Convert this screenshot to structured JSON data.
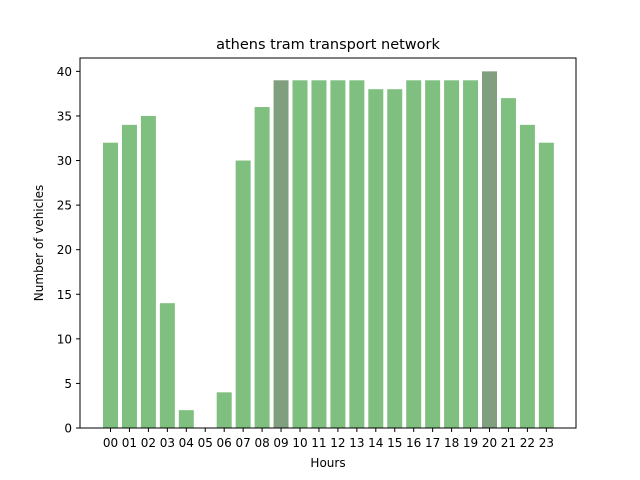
{
  "chart_data": {
    "type": "bar",
    "title": "athens tram transport network",
    "xlabel": "Hours",
    "ylabel": "Number of vehicles",
    "categories": [
      "00",
      "01",
      "02",
      "03",
      "04",
      "05",
      "06",
      "07",
      "08",
      "09",
      "10",
      "11",
      "12",
      "13",
      "14",
      "15",
      "16",
      "17",
      "18",
      "19",
      "20",
      "21",
      "22",
      "23"
    ],
    "values": [
      32,
      34,
      35,
      14,
      2,
      0,
      4,
      30,
      36,
      39,
      39,
      39,
      39,
      39,
      38,
      38,
      39,
      39,
      39,
      39,
      40,
      37,
      34,
      32
    ],
    "highlighted": [
      "09",
      "20"
    ],
    "ylim": [
      0,
      41.5
    ],
    "yticks": [
      0,
      5,
      10,
      15,
      20,
      25,
      30,
      35,
      40
    ],
    "grid": false,
    "colors": {
      "bar": "#7fbf7f",
      "bar_highlight": "#7f9f7f",
      "axes": "#000000",
      "background": "#ffffff"
    }
  }
}
